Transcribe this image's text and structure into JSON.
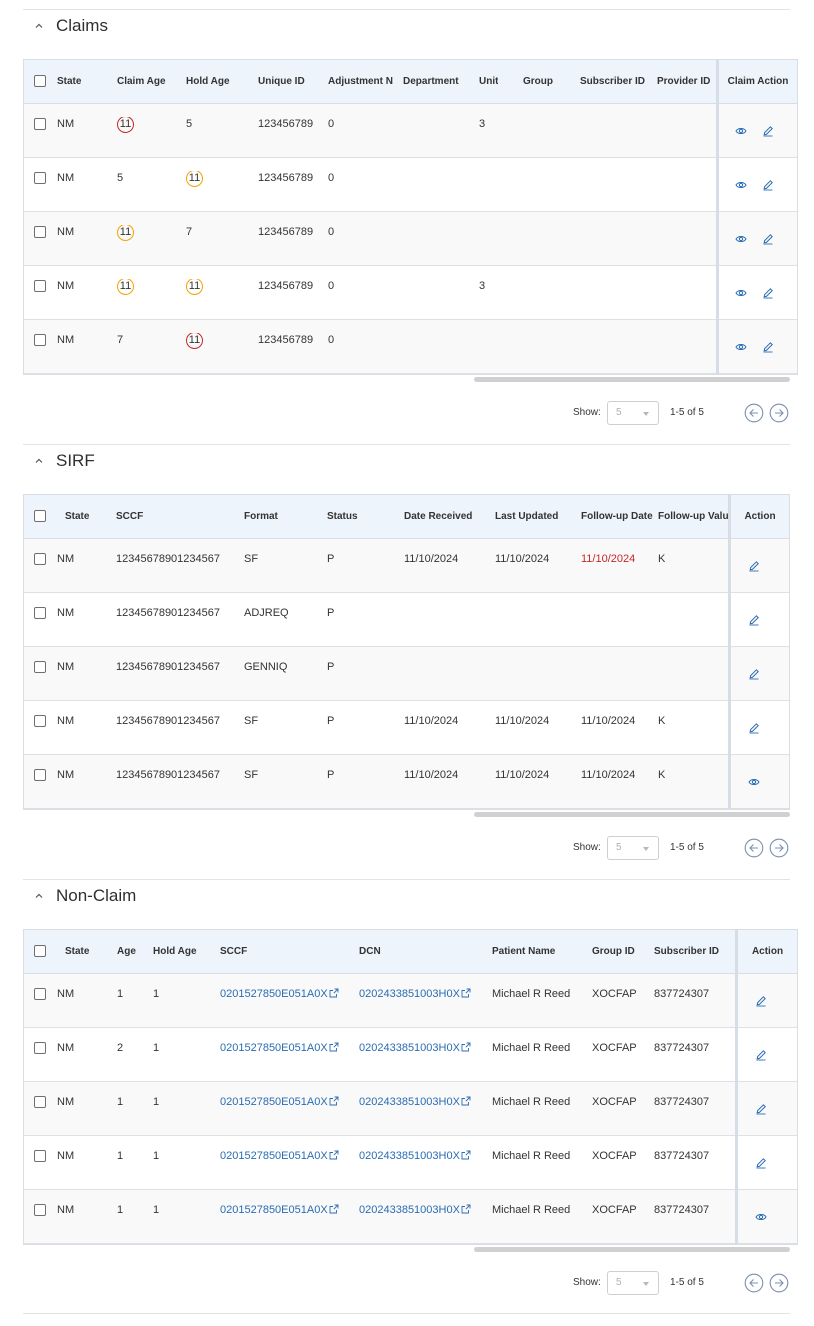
{
  "claims": {
    "title": "Claims",
    "headers": [
      "State",
      "Claim Age",
      "Hold Age",
      "Unique ID",
      "Adjustment N",
      "Department",
      "Unit",
      "Group",
      "Subscriber ID",
      "Provider ID"
    ],
    "action_header": "Claim Action",
    "rows": [
      {
        "state": "NM",
        "claim_age": "11",
        "claim_age_style": "red",
        "hold_age": "5",
        "hold_age_style": "",
        "unique_id": "123456789",
        "adjustment": "0",
        "unit": "3"
      },
      {
        "state": "NM",
        "claim_age": "5",
        "claim_age_style": "",
        "hold_age": "11",
        "hold_age_style": "orange",
        "unique_id": "123456789",
        "adjustment": "0",
        "unit": ""
      },
      {
        "state": "NM",
        "claim_age": "11",
        "claim_age_style": "orange",
        "hold_age": "7",
        "hold_age_style": "",
        "unique_id": "123456789",
        "adjustment": "0",
        "unit": ""
      },
      {
        "state": "NM",
        "claim_age": "11",
        "claim_age_style": "orange",
        "hold_age": "11",
        "hold_age_style": "orange",
        "unique_id": "123456789",
        "adjustment": "0",
        "unit": "3"
      },
      {
        "state": "NM",
        "claim_age": "7",
        "claim_age_style": "",
        "hold_age": "11",
        "hold_age_style": "red",
        "unique_id": "123456789",
        "adjustment": "0",
        "unit": ""
      }
    ],
    "pager": {
      "show_label": "Show:",
      "page_size": "5",
      "range": "1-5 of 5"
    }
  },
  "sirf": {
    "title": "SIRF",
    "headers": [
      "State",
      "SCCF",
      "Format",
      "Status",
      "Date Received",
      "Last Updated",
      "Follow-up Date",
      "Follow-up Value"
    ],
    "action_header": "Action",
    "rows": [
      {
        "state": "NM",
        "sccf": "12345678901234567",
        "format": "SF",
        "status": "P",
        "date_received": "11/10/2024",
        "last_updated": "11/10/2024",
        "followup_date": "11/10/2024",
        "followup_overdue": true,
        "followup_value": "K",
        "action": "edit"
      },
      {
        "state": "NM",
        "sccf": "12345678901234567",
        "format": "ADJREQ",
        "status": "P",
        "date_received": "",
        "last_updated": "",
        "followup_date": "",
        "followup_overdue": false,
        "followup_value": "",
        "action": "edit"
      },
      {
        "state": "NM",
        "sccf": "12345678901234567",
        "format": "GENNIQ",
        "status": "P",
        "date_received": "",
        "last_updated": "",
        "followup_date": "",
        "followup_overdue": false,
        "followup_value": "",
        "action": "edit"
      },
      {
        "state": "NM",
        "sccf": "12345678901234567",
        "format": "SF",
        "status": "P",
        "date_received": "11/10/2024",
        "last_updated": "11/10/2024",
        "followup_date": "11/10/2024",
        "followup_overdue": false,
        "followup_value": "K",
        "action": "edit"
      },
      {
        "state": "NM",
        "sccf": "12345678901234567",
        "format": "SF",
        "status": "P",
        "date_received": "11/10/2024",
        "last_updated": "11/10/2024",
        "followup_date": "11/10/2024",
        "followup_overdue": false,
        "followup_value": "K",
        "action": "view"
      }
    ],
    "pager": {
      "show_label": "Show:",
      "page_size": "5",
      "range": "1-5 of 5"
    }
  },
  "nonclaim": {
    "title": "Non-Claim",
    "headers": [
      "State",
      "Age",
      "Hold Age",
      "SCCF",
      "DCN",
      "Patient Name",
      "Group ID",
      "Subscriber ID"
    ],
    "action_header": "Action",
    "rows": [
      {
        "state": "NM",
        "age": "1",
        "hold_age": "1",
        "sccf": "0201527850E051A0X",
        "dcn": "0202433851003H0X",
        "patient": "Michael R Reed",
        "group_id": "XOCFAP",
        "subscriber_id": "837724307",
        "action": "edit"
      },
      {
        "state": "NM",
        "age": "2",
        "hold_age": "1",
        "sccf": "0201527850E051A0X",
        "dcn": "0202433851003H0X",
        "patient": "Michael R Reed",
        "group_id": "XOCFAP",
        "subscriber_id": "837724307",
        "action": "edit"
      },
      {
        "state": "NM",
        "age": "1",
        "hold_age": "1",
        "sccf": "0201527850E051A0X",
        "dcn": "0202433851003H0X",
        "patient": "Michael R Reed",
        "group_id": "XOCFAP",
        "subscriber_id": "837724307",
        "action": "edit"
      },
      {
        "state": "NM",
        "age": "1",
        "hold_age": "1",
        "sccf": "0201527850E051A0X",
        "dcn": "0202433851003H0X",
        "patient": "Michael R Reed",
        "group_id": "XOCFAP",
        "subscriber_id": "837724307",
        "action": "edit"
      },
      {
        "state": "NM",
        "age": "1",
        "hold_age": "1",
        "sccf": "0201527850E051A0X",
        "dcn": "0202433851003H0X",
        "patient": "Michael R Reed",
        "group_id": "XOCFAP",
        "subscriber_id": "837724307",
        "action": "view"
      }
    ],
    "pager": {
      "show_label": "Show:",
      "page_size": "5",
      "range": "1-5 of 5"
    }
  },
  "icons": {
    "collapse": "chevron-up-icon",
    "view": "eye-icon",
    "edit": "pencil-icon",
    "external": "external-link-icon",
    "prev": "arrow-left-circle-icon",
    "next": "arrow-right-circle-icon"
  },
  "colors": {
    "accent": "#2a6cb3",
    "header_bg": "#eef4fc",
    "badge_red": "#c62828",
    "badge_orange": "#f0a500",
    "overdue": "#c62828"
  }
}
